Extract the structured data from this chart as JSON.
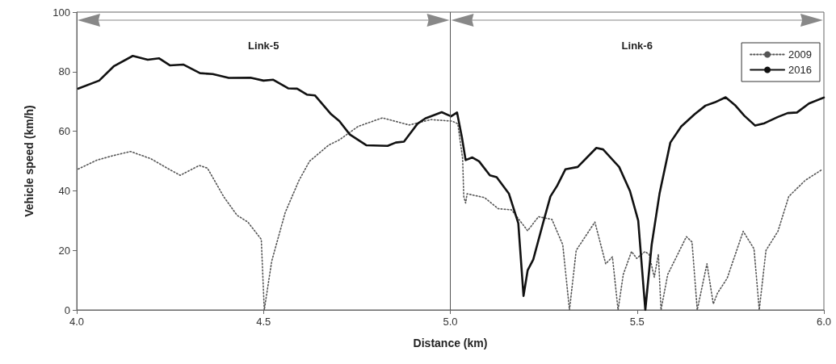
{
  "chart_data": {
    "type": "line",
    "xlabel": "Distance (km)",
    "ylabel": "Vehicle speed (km/h)",
    "xlim": [
      4,
      6
    ],
    "xticks": [
      {
        "value": 4,
        "label": "4.0"
      },
      4.5,
      {
        "value": 5,
        "label": "5.0"
      },
      5.5,
      {
        "value": 6,
        "label": "6.0"
      }
    ],
    "ylim": [
      0,
      100
    ],
    "yticks": [
      0,
      20,
      40,
      60,
      80,
      100
    ],
    "grid": false,
    "legend": "top right",
    "marker": "none",
    "ref_lines": [
      {
        "axis": "x",
        "value": 5,
        "label": null,
        "color": "#555555"
      }
    ],
    "annotations": [
      "Link-5",
      "Link-6"
    ],
    "series": [
      {
        "name": "2009",
        "color": "#555555",
        "line_style": "dotted",
        "x": [
          4.004,
          4.054,
          4.097,
          4.144,
          4.198,
          4.242,
          4.277,
          4.328,
          4.35,
          4.393,
          4.429,
          4.458,
          4.494,
          4.502,
          4.522,
          4.558,
          4.595,
          4.623,
          4.674,
          4.703,
          4.753,
          4.818,
          4.89,
          4.948,
          5.005,
          5.02,
          5.033,
          5.036,
          5.041,
          5.045,
          5.092,
          5.128,
          5.164,
          5.207,
          5.236,
          5.272,
          5.301,
          5.319,
          5.337,
          5.387,
          5.416,
          5.434,
          5.449,
          5.463,
          5.485,
          5.499,
          5.521,
          5.532,
          5.546,
          5.557,
          5.564,
          5.582,
          5.632,
          5.647,
          5.661,
          5.687,
          5.704,
          5.715,
          5.741,
          5.784,
          5.813,
          5.827,
          5.845,
          5.877,
          5.906,
          5.95,
          5.996
        ],
        "values": [
          47.3,
          50.3,
          51.8,
          53.2,
          50.8,
          47.6,
          45.2,
          48.5,
          47.6,
          38.1,
          31.8,
          29.5,
          23.7,
          0,
          16.4,
          32.7,
          43.5,
          49.9,
          55.3,
          57.1,
          61.6,
          64.5,
          62.1,
          63.9,
          63.4,
          62.5,
          50.8,
          38.1,
          35.9,
          39,
          37.7,
          34,
          33.6,
          26.6,
          31.3,
          30.4,
          21.9,
          0,
          20,
          29.5,
          15.5,
          17.8,
          0,
          11.9,
          19.6,
          17.3,
          19.6,
          18.7,
          11,
          18.7,
          0,
          11.9,
          24.6,
          22.8,
          0,
          15.5,
          2,
          5.6,
          10.6,
          26.4,
          20.5,
          0,
          20,
          26.4,
          38.1,
          43.5,
          47.2
        ]
      },
      {
        "name": "2016",
        "color": "#111111",
        "line_style": "solid",
        "x": [
          4.004,
          4.06,
          4.1,
          4.15,
          4.19,
          4.22,
          4.25,
          4.285,
          4.33,
          4.364,
          4.407,
          4.465,
          4.5,
          4.526,
          4.566,
          4.59,
          4.616,
          4.638,
          4.681,
          4.703,
          4.731,
          4.775,
          4.832,
          4.854,
          4.876,
          4.912,
          4.933,
          4.977,
          5.002,
          5.018,
          5.031,
          5.041,
          5.059,
          5.077,
          5.106,
          5.124,
          5.157,
          5.182,
          5.196,
          5.207,
          5.222,
          5.25,
          5.268,
          5.286,
          5.308,
          5.341,
          5.391,
          5.409,
          5.452,
          5.481,
          5.503,
          5.522,
          5.539,
          5.56,
          5.589,
          5.618,
          5.654,
          5.683,
          5.708,
          5.737,
          5.762,
          5.787,
          5.816,
          5.841,
          5.877,
          5.903,
          5.928,
          5.96,
          6.0
        ],
        "values": [
          74.3,
          77,
          81.9,
          85.3,
          84,
          84.5,
          82.1,
          82.4,
          79.5,
          79.2,
          77.9,
          78,
          77,
          77.3,
          74.4,
          74.3,
          72.3,
          72,
          65.7,
          63.4,
          58.9,
          55.3,
          55.1,
          56.2,
          56.5,
          62.5,
          64.3,
          66.4,
          65,
          66.3,
          58,
          50.3,
          51.2,
          49.9,
          45.2,
          44.6,
          39,
          29.1,
          4.7,
          13.3,
          16.9,
          30,
          38.1,
          41.7,
          47.2,
          48,
          54.4,
          53.9,
          48,
          39.9,
          30,
          0,
          21.9,
          39,
          56.2,
          61.6,
          65.7,
          68.6,
          69.7,
          71.4,
          68.8,
          65.2,
          61.9,
          62.7,
          64.8,
          66.1,
          66.3,
          69.3,
          71.3
        ]
      }
    ]
  }
}
